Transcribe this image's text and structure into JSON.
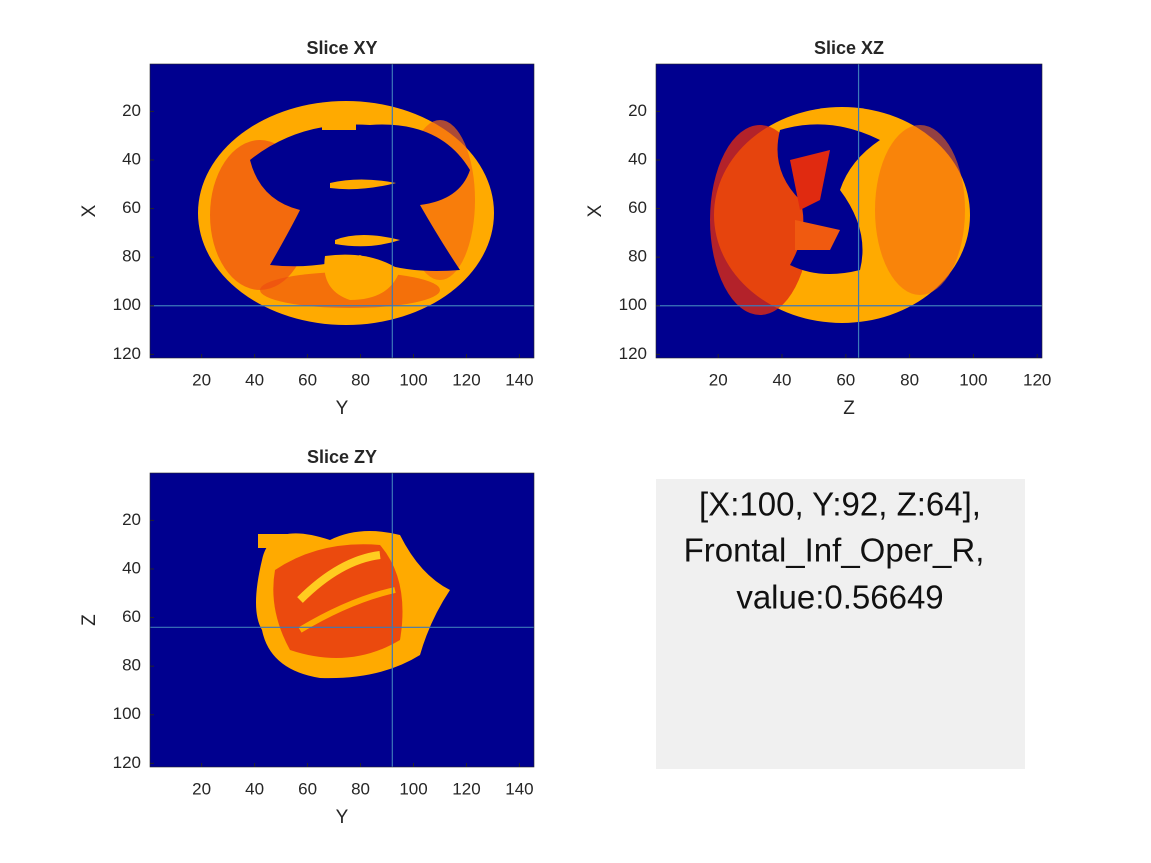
{
  "chart_data": [
    {
      "type": "image",
      "title": "Slice XY",
      "xlabel": "Y",
      "ylabel": "X",
      "xlim": [
        0.5,
        145.5
      ],
      "ylim": [
        0.5,
        121.5
      ],
      "y_reversed": true,
      "xticks": [
        20,
        40,
        60,
        80,
        100,
        120,
        140
      ],
      "yticks": [
        20,
        40,
        60,
        80,
        100,
        120
      ],
      "crosshair": {
        "x": 92,
        "y": 100,
        "color": "#3d79b8"
      }
    },
    {
      "type": "image",
      "title": "Slice XZ",
      "xlabel": "Z",
      "ylabel": "X",
      "xlim": [
        0.5,
        121.5
      ],
      "ylim": [
        0.5,
        121.5
      ],
      "y_reversed": true,
      "xticks": [
        20,
        40,
        60,
        80,
        100,
        120
      ],
      "yticks": [
        20,
        40,
        60,
        80,
        100,
        120
      ],
      "crosshair": {
        "x": 64,
        "y": 100,
        "color": "#3d79b8"
      }
    },
    {
      "type": "image",
      "title": "Slice ZY",
      "xlabel": "Y",
      "ylabel": "Z",
      "xlim": [
        0.5,
        145.5
      ],
      "ylim": [
        0.5,
        121.5
      ],
      "y_reversed": true,
      "xticks": [
        20,
        40,
        60,
        80,
        100,
        120,
        140
      ],
      "yticks": [
        20,
        40,
        60,
        80,
        100,
        120
      ],
      "crosshair": {
        "x": 92,
        "y": 64,
        "color": "#3d79b8"
      }
    }
  ],
  "info_panel": {
    "lines": [
      "[X:100, Y:92, Z:64],",
      "Frontal_Inf_Oper_R,",
      "value:0.56649"
    ]
  }
}
